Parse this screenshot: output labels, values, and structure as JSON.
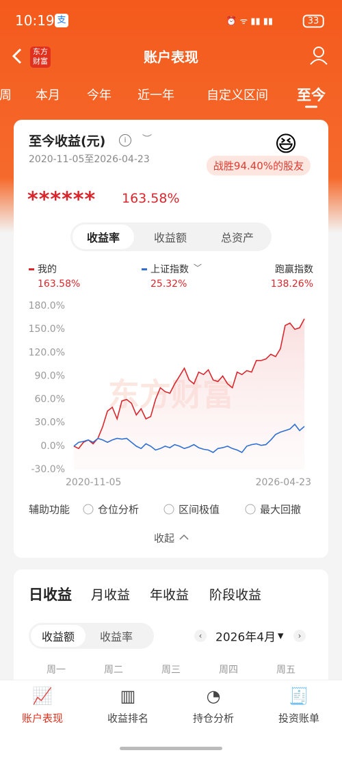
{
  "status_bar": {
    "time": "10:19",
    "battery": "33"
  },
  "nav": {
    "logo": [
      "东方",
      "财富"
    ],
    "title": "账户表现"
  },
  "period_tabs": [
    "周",
    "本月",
    "今年",
    "近一年",
    "自定义区间",
    "至今"
  ],
  "summary": {
    "title": "至今收益(元)",
    "date_range": "2020-11-05至2026-04-23",
    "badge": "战胜94.40%的股友",
    "masked_amount": "******",
    "return": "163.58%"
  },
  "chart_tabs": [
    "收益率",
    "收益额",
    "总资产"
  ],
  "chart_data": {
    "type": "line",
    "watermark": "东方财富",
    "categories": [
      "2020-11-05",
      null,
      null,
      null,
      null,
      null,
      null,
      null,
      null,
      null,
      null,
      null,
      null,
      null,
      null,
      null,
      null,
      null,
      null,
      null,
      null,
      null,
      null,
      null,
      null,
      null,
      null,
      null,
      null,
      null,
      null,
      null,
      null,
      null,
      null,
      null,
      null,
      null,
      null,
      null,
      null,
      null,
      null,
      null,
      null,
      null,
      null,
      null,
      "2026-04-23"
    ],
    "series": [
      {
        "name": "我的",
        "summary": "163.58%",
        "color": "#d9262c",
        "values": [
          0,
          -3,
          5,
          8,
          3,
          10,
          25,
          45,
          50,
          35,
          58,
          60,
          55,
          40,
          48,
          35,
          38,
          60,
          75,
          70,
          68,
          80,
          90,
          100,
          85,
          80,
          95,
          92,
          98,
          85,
          83,
          90,
          80,
          75,
          95,
          92,
          97,
          95,
          110,
          110,
          112,
          118,
          115,
          125,
          155,
          158,
          150,
          152,
          163.58
        ]
      },
      {
        "name": "上证指数",
        "summary": "25.32%",
        "color": "#2f6fd1",
        "values": [
          0,
          5,
          6,
          8,
          5,
          10,
          8,
          5,
          8,
          10,
          9,
          10,
          5,
          0,
          -3,
          3,
          0,
          -5,
          -3,
          0,
          -2,
          2,
          0,
          -3,
          -1,
          2,
          -2,
          -4,
          -5,
          -8,
          -3,
          -2,
          0,
          -3,
          -5,
          -8,
          0,
          2,
          3,
          1,
          2,
          8,
          15,
          18,
          20,
          22,
          28,
          20,
          25.32
        ]
      }
    ],
    "excess": {
      "name": "跑赢指数",
      "value": "138.26%"
    },
    "ylim": [
      -30,
      180
    ],
    "yticks": [
      {
        "value": 180,
        "label": "180.0%"
      },
      {
        "value": 150,
        "label": "150.0%"
      },
      {
        "value": 120,
        "label": "120.0%"
      },
      {
        "value": 90,
        "label": "90.0%"
      },
      {
        "value": 60,
        "label": "60.0%"
      },
      {
        "value": 30,
        "label": "30.0%"
      },
      {
        "value": 0,
        "label": "0.0%"
      },
      {
        "value": -30,
        "label": "-30.0%"
      }
    ],
    "grid": false
  },
  "aux": {
    "label": "辅助功能",
    "options": [
      "仓位分析",
      "区间极值",
      "最大回撤"
    ]
  },
  "collapse": "收起",
  "daily": {
    "tabs": [
      "日收益",
      "月收益",
      "年收益",
      "阶段收益"
    ],
    "toggle": [
      "收益额",
      "收益率"
    ],
    "month": "2026年4月",
    "weekdays": [
      "周一",
      "周二",
      "周三",
      "周四",
      "周五"
    ]
  },
  "bottom_nav": [
    "账户表现",
    "收益排名",
    "持仓分析",
    "投资账单"
  ]
}
